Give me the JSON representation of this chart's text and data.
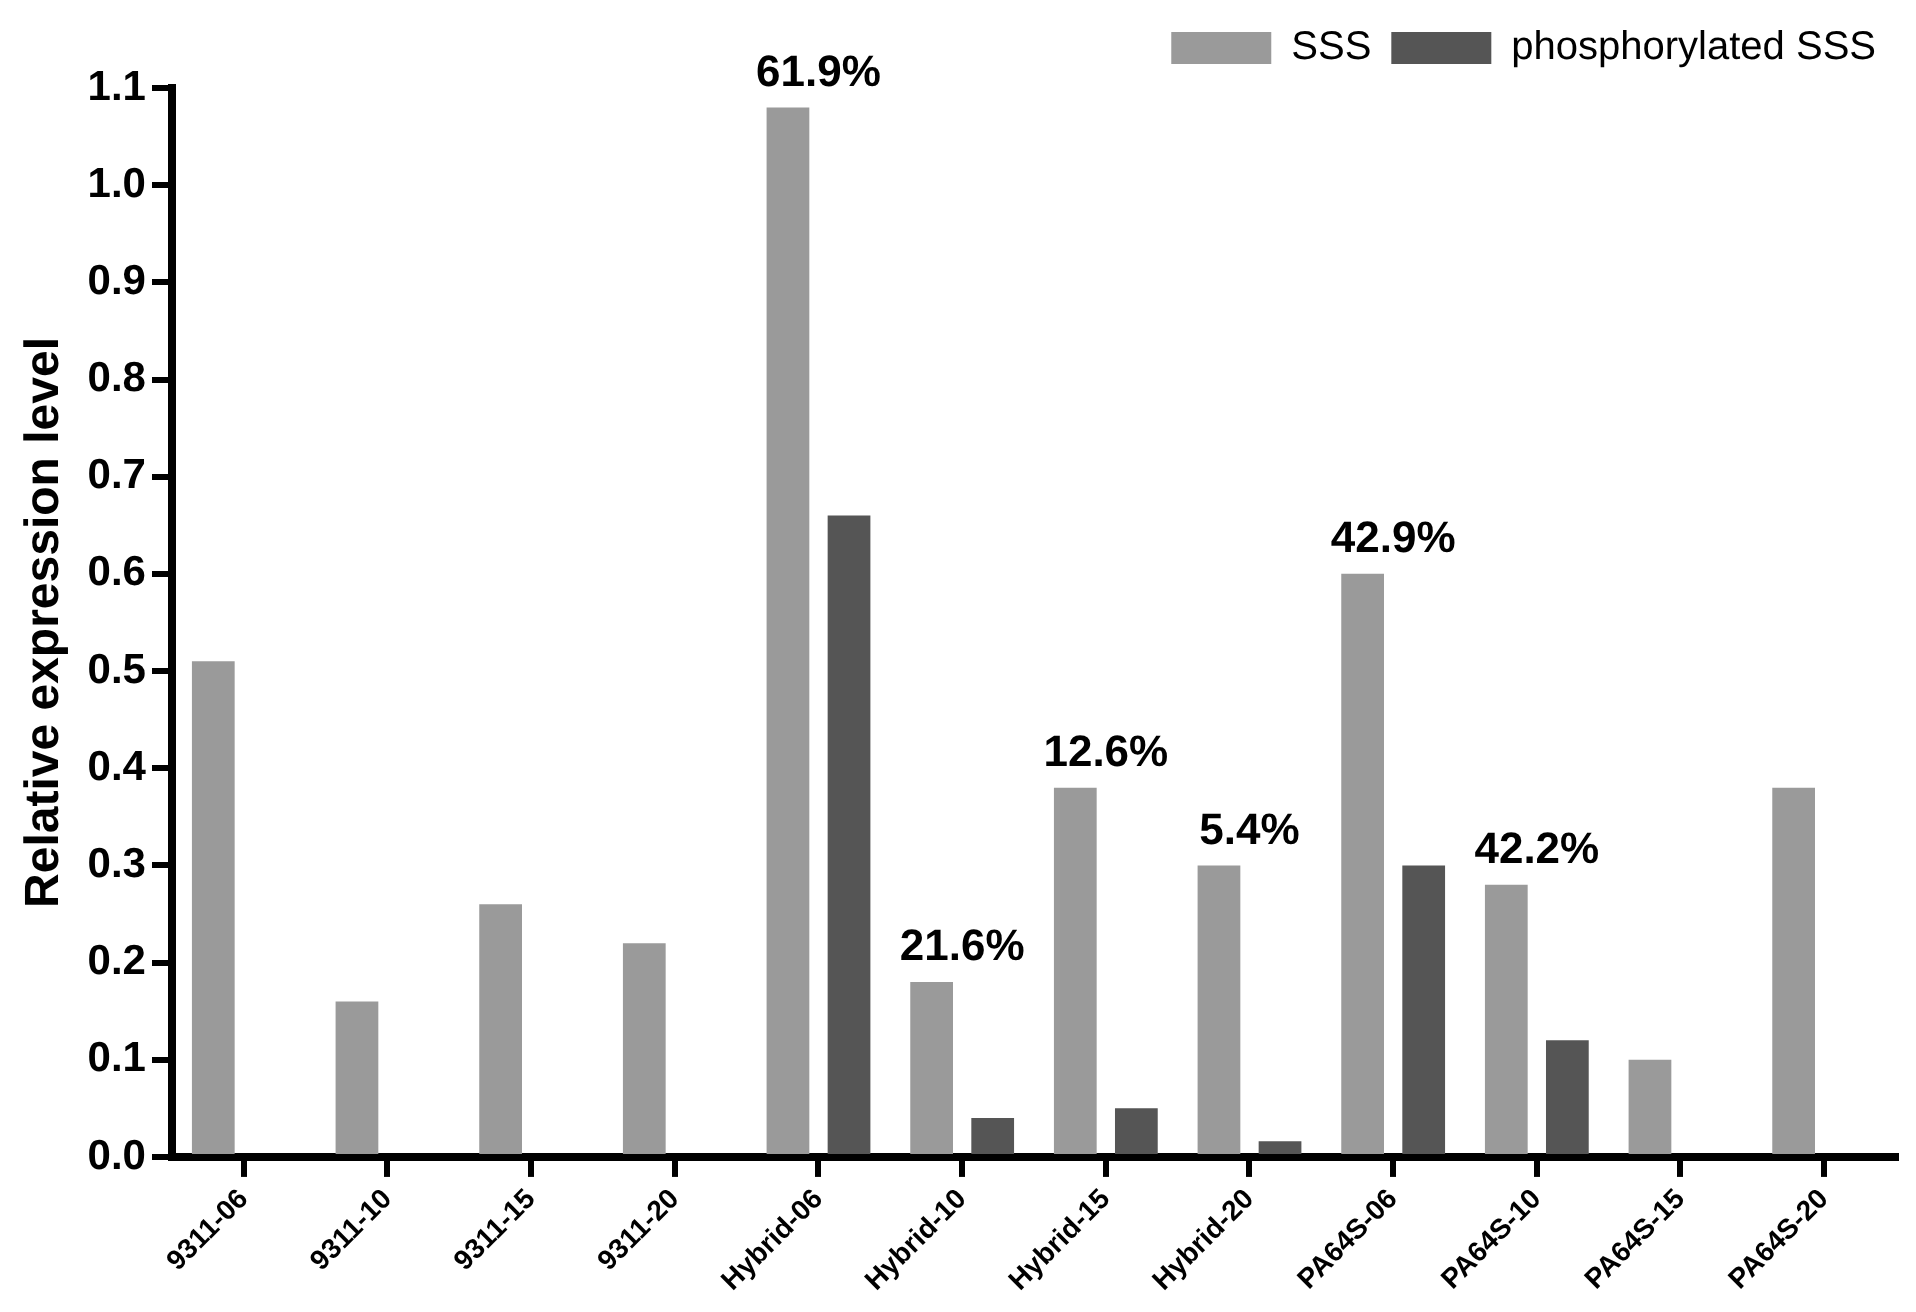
{
  "chart_data": {
    "type": "bar",
    "ylabel": "Relative expression level",
    "categories": [
      "9311-06",
      "9311-10",
      "9311-15",
      "9311-20",
      "Hybrid-06",
      "Hybrid-10",
      "Hybrid-15",
      "Hybrid-20",
      "PA64S-06",
      "PA64S-10",
      "PA64S-15",
      "PA64S-20"
    ],
    "series": [
      {
        "name": "SSS",
        "color": "#9a9a9a",
        "values": [
          0.51,
          0.16,
          0.26,
          0.22,
          1.08,
          0.18,
          0.38,
          0.3,
          0.6,
          0.28,
          0.1,
          0.38
        ]
      },
      {
        "name": "phosphorylated SSS",
        "color": "#555555",
        "values": [
          null,
          null,
          null,
          null,
          0.66,
          0.04,
          0.05,
          0.016,
          0.3,
          0.12,
          null,
          null
        ]
      }
    ],
    "ylim": [
      0,
      1.1
    ],
    "yticks": [
      {
        "value": 0,
        "label": "0.0"
      },
      0.1,
      0.2,
      0.3,
      0.4,
      0.5,
      0.6,
      0.7,
      0.8,
      0.9,
      {
        "value": 1,
        "label": "1.0"
      },
      1.1
    ],
    "legend": "top right",
    "annotations": [
      {
        "text": "61.9%",
        "x": "Hybrid-06",
        "y": 1.08
      },
      {
        "text": "21.6%",
        "x": "Hybrid-10",
        "y": 0.18
      },
      {
        "text": "12.6%",
        "x": "Hybrid-15",
        "y": 0.38
      },
      {
        "text": "5.4%",
        "x": "Hybrid-20",
        "y": 0.3
      },
      {
        "text": "42.9%",
        "x": "PA64S-06",
        "y": 0.6
      },
      {
        "text": "42.2%",
        "x": "PA64S-10",
        "y": 0.28
      }
    ]
  }
}
